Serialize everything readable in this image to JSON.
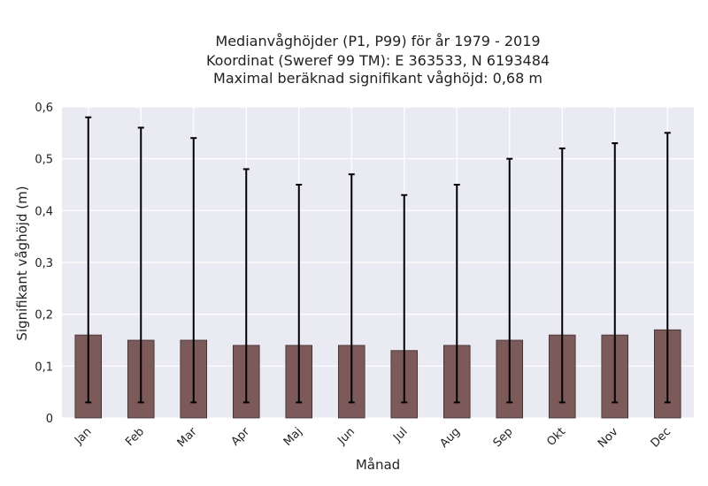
{
  "chart_data": {
    "type": "bar",
    "title_lines": [
      "Medianvåghöjder (P1, P99) för år 1979 - 2019",
      "Koordinat (Sweref 99 TM): E 363533, N 6193484",
      "Maximal beräknad signifikant våghöjd: 0,68 m"
    ],
    "xlabel": "Månad",
    "ylabel": "Signifikant våghöjd (m)",
    "categories": [
      "Jan",
      "Feb",
      "Mar",
      "Apr",
      "Maj",
      "Jun",
      "Jul",
      "Aug",
      "Sep",
      "Okt",
      "Nov",
      "Dec"
    ],
    "values": [
      0.16,
      0.15,
      0.15,
      0.14,
      0.14,
      0.14,
      0.13,
      0.14,
      0.15,
      0.16,
      0.16,
      0.17
    ],
    "error_low": [
      0.03,
      0.03,
      0.03,
      0.03,
      0.03,
      0.03,
      0.03,
      0.03,
      0.03,
      0.03,
      0.03,
      0.03
    ],
    "error_high": [
      0.58,
      0.56,
      0.54,
      0.48,
      0.45,
      0.47,
      0.43,
      0.45,
      0.5,
      0.52,
      0.53,
      0.55
    ],
    "ylim": [
      0,
      0.6
    ],
    "yticks": [
      0,
      0.1,
      0.2,
      0.3,
      0.4,
      0.5,
      0.6
    ],
    "ytick_labels": [
      "0",
      "0,1",
      "0,2",
      "0,3",
      "0,4",
      "0,5",
      "0,6"
    ],
    "grid": true,
    "colors": {
      "bar": "#7d5a5a",
      "bar_edge": "#3a2c2c",
      "error": "#000000",
      "background": "#eaeaf2",
      "grid": "#ffffff"
    }
  }
}
